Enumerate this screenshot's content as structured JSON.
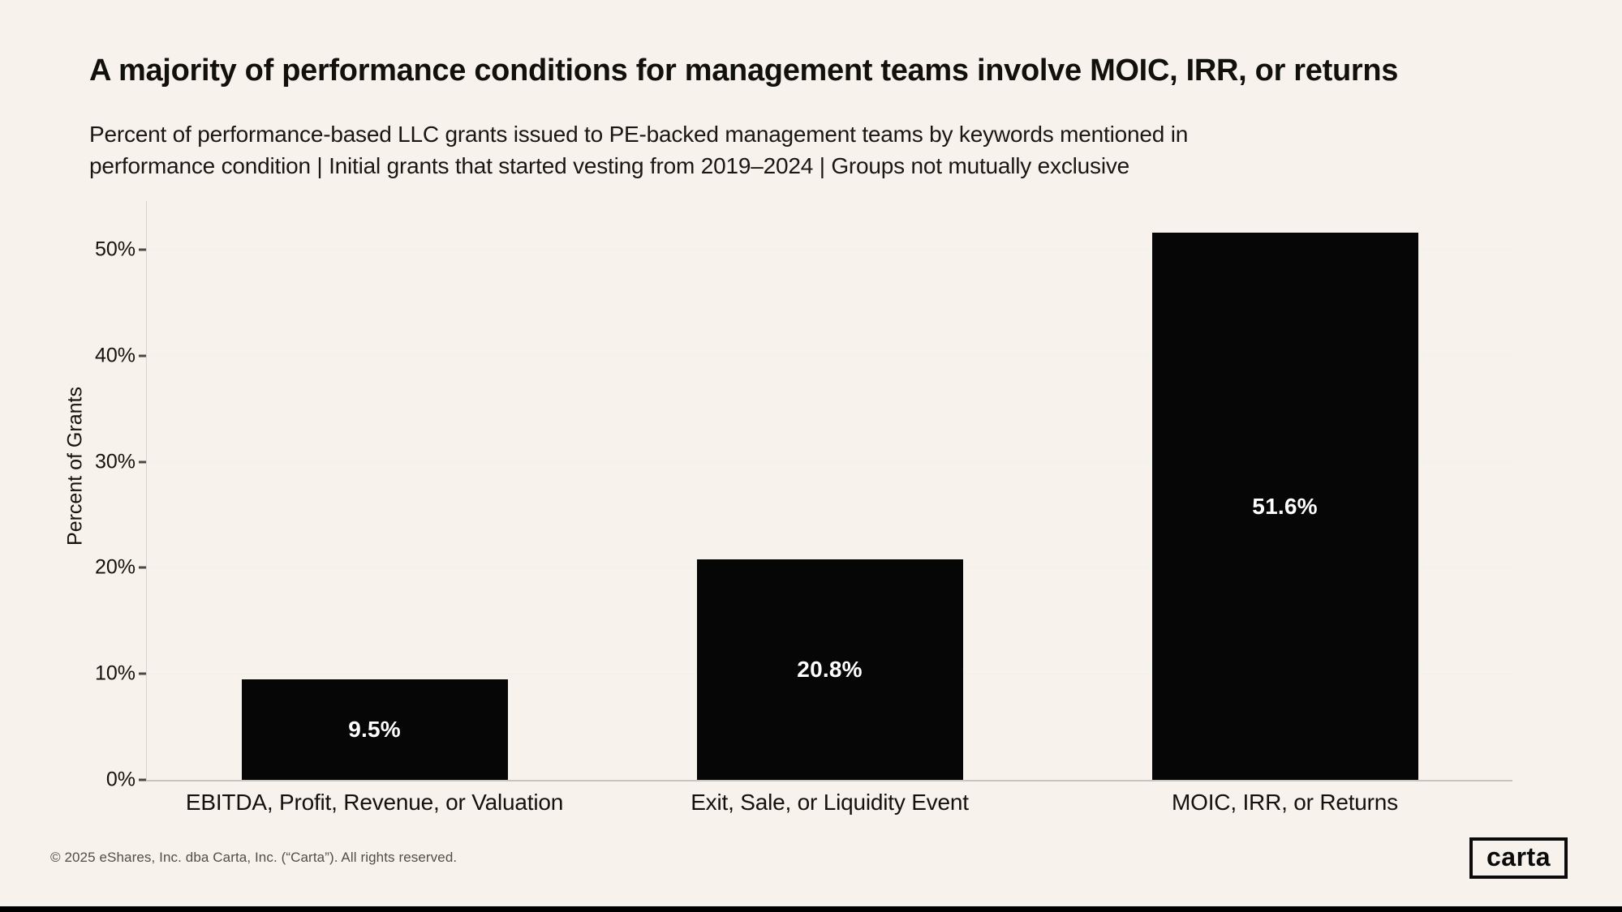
{
  "header": {
    "title": "A majority of performance conditions for management teams involve MOIC, IRR, or returns",
    "subtitle_line1": "Percent of performance-based LLC grants issued to PE-backed management teams by keywords mentioned in",
    "subtitle_line2": "performance condition | Initial grants that started vesting from 2019–2024 | Groups not mutually exclusive"
  },
  "chart_data": {
    "type": "bar",
    "title": "A majority of performance conditions for management teams involve MOIC, IRR, or returns",
    "categories": [
      "EBITDA, Profit, Revenue, or Valuation",
      "Exit, Sale, or Liquidity Event",
      "MOIC, IRR, or Returns"
    ],
    "values": [
      9.5,
      20.8,
      51.6
    ],
    "value_labels": [
      "9.5%",
      "20.8%",
      "51.6%"
    ],
    "ylabel": "Percent of Grants",
    "yticks": [
      {
        "value": 0,
        "label": "0%"
      },
      {
        "value": 10,
        "label": "10%"
      },
      {
        "value": 20,
        "label": "20%"
      },
      {
        "value": 30,
        "label": "30%"
      },
      {
        "value": 40,
        "label": "40%"
      },
      {
        "value": 50,
        "label": "50%"
      }
    ],
    "ylim": [
      0,
      54.6
    ],
    "grid": "horizontal",
    "legend": "none",
    "bar_color": "#060606",
    "value_label_color": "#ffffff"
  },
  "footer": {
    "copyright": "© 2025 eShares, Inc. dba Carta, Inc. (“Carta”). All rights reserved.",
    "logo_text": "carta"
  },
  "colors": {
    "background": "#f7f3ec",
    "gridline": "#f1f0ea",
    "axis_spine": "#d8d5cf",
    "baseline": "#c8c5bf",
    "text": "#15120c"
  }
}
